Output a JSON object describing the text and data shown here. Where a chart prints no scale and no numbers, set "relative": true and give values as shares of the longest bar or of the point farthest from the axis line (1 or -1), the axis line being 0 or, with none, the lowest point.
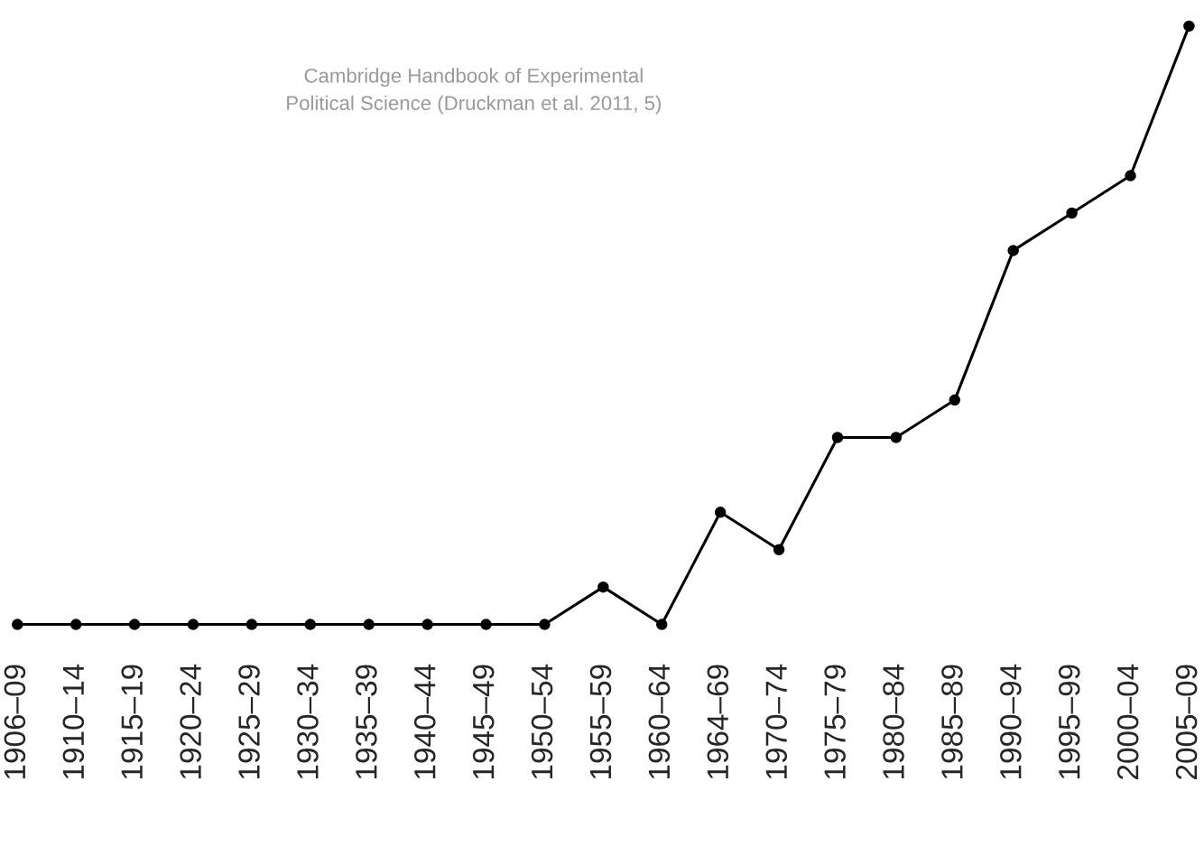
{
  "chart_data": {
    "type": "line",
    "relative": true,
    "marker": "circle",
    "line_style": "solid",
    "grid": false,
    "legend": false,
    "categories": [
      "1906–09",
      "1910–14",
      "1915–19",
      "1920–24",
      "1925–29",
      "1930–34",
      "1935–39",
      "1940–44",
      "1945–49",
      "1950–54",
      "1955–59",
      "1960–64",
      "1964–69",
      "1970–74",
      "1975–79",
      "1980–84",
      "1985–89",
      "1990–94",
      "1995–99",
      "2000–04",
      "2005–09"
    ],
    "series": [
      {
        "color": "#000000",
        "values": [
          0,
          0,
          0,
          0,
          0,
          0,
          0,
          0,
          0,
          0,
          0.0625,
          0,
          0.1875,
          0.125,
          0.3125,
          0.3125,
          0.375,
          0.625,
          0.6875,
          0.75,
          1
        ]
      }
    ],
    "annotations": [
      "Cambridge Handbook of Experimental\nPolitical Science (Druckman et al. 2011, 5)"
    ]
  }
}
